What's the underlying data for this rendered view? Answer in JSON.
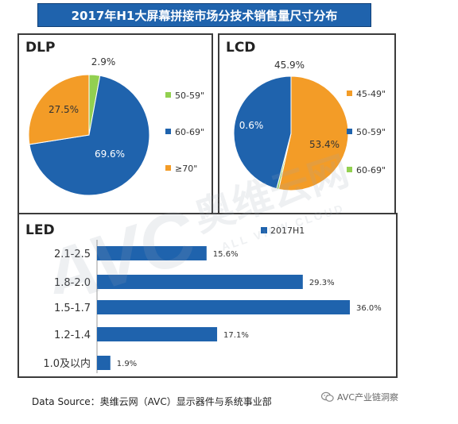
{
  "header": {
    "title": "2017年H1大屏幕拼接市场分技术销售量尺寸分布"
  },
  "chart_data": [
    {
      "type": "pie",
      "title": "DLP",
      "slices": [
        {
          "label": "50-59\"",
          "value": 2.9,
          "value_text": "2.9%",
          "color": "#92d050"
        },
        {
          "label": "60-69\"",
          "value": 69.6,
          "value_text": "69.6%",
          "color": "#1f63ad"
        },
        {
          "label": "≥70\"",
          "value": 27.5,
          "value_text": "27.5%",
          "color": "#f39c27"
        }
      ]
    },
    {
      "type": "pie",
      "title": "LCD",
      "slices": [
        {
          "label": "45-49\"",
          "value": 53.4,
          "value_text": "53.4%",
          "color": "#f39c27"
        },
        {
          "label": "50-59\"",
          "value": 45.9,
          "value_text": "45.9%",
          "color": "#1f63ad"
        },
        {
          "label": "60-69\"",
          "value": 0.6,
          "value_text": "0.6%",
          "color": "#92d050"
        }
      ]
    },
    {
      "type": "bar",
      "orientation": "horizontal",
      "title": "LED",
      "legend": "2017H1",
      "color": "#1f63ad",
      "categories": [
        "2.1-2.5",
        "1.8-2.0",
        "1.5-1.7",
        "1.2-1.4",
        "1.0及以内"
      ],
      "values": [
        15.6,
        29.3,
        36.0,
        17.1,
        1.9
      ],
      "value_texts": [
        "15.6%",
        "29.3%",
        "36.0%",
        "17.1%",
        "1.9%"
      ]
    }
  ],
  "footer": {
    "source": "Data Source：奥维云网（AVC）显示器件与系统事业部",
    "wechat": "AVC产业链洞察"
  },
  "watermark": {
    "brand": "AVC",
    "name": "奥维云网",
    "tagline": "ALL VIEW CLOUD"
  }
}
